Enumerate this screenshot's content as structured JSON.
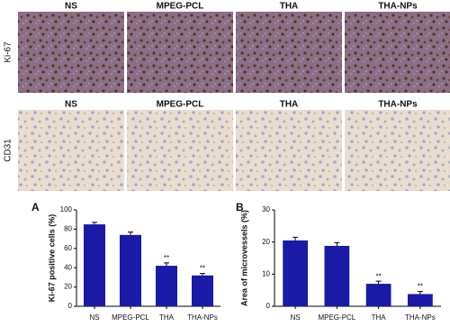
{
  "micrographs": {
    "rows": [
      {
        "label": "Ki-67",
        "panels": [
          "NS",
          "MPEG-PCL",
          "THA",
          "THA-NPs"
        ]
      },
      {
        "label": "CD31",
        "panels": [
          "NS",
          "MPEG-PCL",
          "THA",
          "THA-NPs"
        ]
      }
    ]
  },
  "chart_data": [
    {
      "type": "bar",
      "label": "A",
      "y_label": "Ki-67 positive cells (%)",
      "categories": [
        "NS",
        "MPEG-PCL",
        "THA",
        "THA-NPs"
      ],
      "values": [
        85,
        74,
        42,
        32
      ],
      "errors": [
        2,
        3,
        3,
        2
      ],
      "significance": [
        null,
        null,
        "**",
        "**"
      ],
      "color": "#1a1aa6",
      "ylim": [
        0,
        100
      ],
      "yticks": [
        0,
        20,
        40,
        60,
        80,
        100
      ]
    },
    {
      "type": "bar",
      "label": "B",
      "y_label": "Area of microvessels (%)",
      "categories": [
        "NS",
        "MPEG-PCL",
        "THA",
        "THA-NPs"
      ],
      "values": [
        20.5,
        18.8,
        7,
        3.8
      ],
      "errors": [
        1,
        1,
        0.8,
        0.8
      ],
      "significance": [
        null,
        null,
        "**",
        "**"
      ],
      "color": "#1a1aa6",
      "ylim": [
        0,
        30
      ],
      "yticks": [
        0,
        10,
        20,
        30
      ]
    }
  ]
}
